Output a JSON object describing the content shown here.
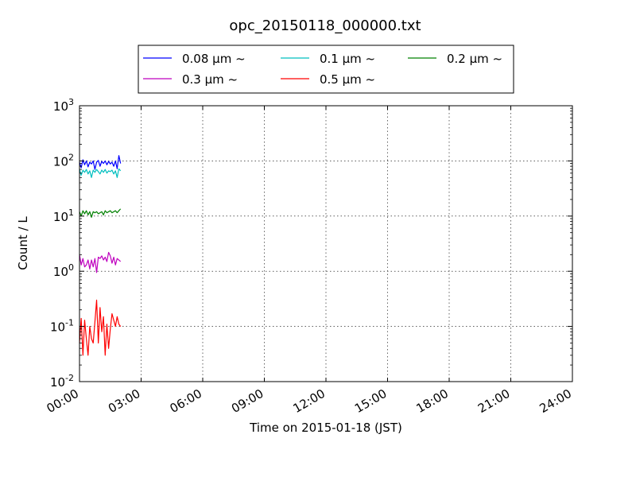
{
  "chart_data": {
    "type": "line",
    "title": "opc_20150118_000000.txt",
    "xlabel": "Time on 2015-01-18 (JST)",
    "ylabel": "Count / L",
    "y_scale": "log",
    "ylim": [
      0.01,
      1000
    ],
    "xlim": [
      "2015-01-18 00:00",
      "2015-01-19 00:00"
    ],
    "grid": true,
    "legend_position": "top-center-outside",
    "legend_columns": 3,
    "x_ticks": [
      {
        "hour": 0,
        "label": "00:00"
      },
      {
        "hour": 3,
        "label": "03:00"
      },
      {
        "hour": 6,
        "label": "06:00"
      },
      {
        "hour": 9,
        "label": "09:00"
      },
      {
        "hour": 12,
        "label": "12:00"
      },
      {
        "hour": 15,
        "label": "15:00"
      },
      {
        "hour": 18,
        "label": "18:00"
      },
      {
        "hour": 21,
        "label": "21:00"
      },
      {
        "hour": 24,
        "label": "24:00"
      }
    ],
    "y_ticks": [
      {
        "value": 0.01,
        "base": "10",
        "exp": "-2"
      },
      {
        "value": 0.1,
        "base": "10",
        "exp": "-1"
      },
      {
        "value": 1,
        "base": "10",
        "exp": "0"
      },
      {
        "value": 10,
        "base": "10",
        "exp": "1"
      },
      {
        "value": 100,
        "base": "10",
        "exp": "2"
      },
      {
        "value": 1000,
        "base": "10",
        "exp": "3"
      }
    ],
    "x": [
      "00:00",
      "00:05",
      "00:10",
      "00:15",
      "00:20",
      "00:25",
      "00:30",
      "00:35",
      "00:40",
      "00:45",
      "00:50",
      "00:55",
      "01:00",
      "01:05",
      "01:10",
      "01:15",
      "01:20",
      "01:25",
      "01:30",
      "01:35",
      "01:40",
      "01:45",
      "01:50",
      "01:55",
      "02:00"
    ],
    "series": [
      {
        "name": "0.08 μm ~",
        "color": "#0000ff",
        "values": [
          95,
          75,
          105,
          85,
          100,
          78,
          95,
          88,
          100,
          70,
          95,
          102,
          80,
          98,
          90,
          100,
          85,
          98,
          88,
          95,
          80,
          100,
          72,
          125,
          90
        ]
      },
      {
        "name": "0.1 μm ~",
        "color": "#00bfbf",
        "values": [
          70,
          55,
          68,
          62,
          70,
          58,
          66,
          50,
          68,
          62,
          70,
          64,
          58,
          68,
          62,
          70,
          60,
          66,
          64,
          68,
          58,
          66,
          50,
          72,
          66
        ]
      },
      {
        "name": "0.2 μm ~",
        "color": "#008000",
        "values": [
          12,
          10,
          12.5,
          11,
          12.5,
          10.5,
          12,
          9.5,
          12,
          11.5,
          12,
          11,
          11.5,
          12,
          10.5,
          12.5,
          11.5,
          12,
          12.5,
          11.5,
          12,
          12.5,
          11.5,
          12.5,
          13.5
        ]
      },
      {
        "name": "0.3 μm ~",
        "color": "#bf00bf",
        "values": [
          2.0,
          1.3,
          1.7,
          1.2,
          1.3,
          1.6,
          1.1,
          1.6,
          1.2,
          1.7,
          0.95,
          1.8,
          1.7,
          1.9,
          1.6,
          1.8,
          1.5,
          2.2,
          1.9,
          1.4,
          1.8,
          1.3,
          1.7,
          1.6,
          1.5
        ]
      },
      {
        "name": "0.5 μm ~",
        "color": "#ff0000",
        "values": [
          0.05,
          0.14,
          0.03,
          0.13,
          0.06,
          0.03,
          0.1,
          0.06,
          0.05,
          0.12,
          0.3,
          0.05,
          0.22,
          0.08,
          0.15,
          0.03,
          0.11,
          0.04,
          0.09,
          0.17,
          0.13,
          0.1,
          0.15,
          0.11,
          0.1
        ]
      }
    ]
  }
}
